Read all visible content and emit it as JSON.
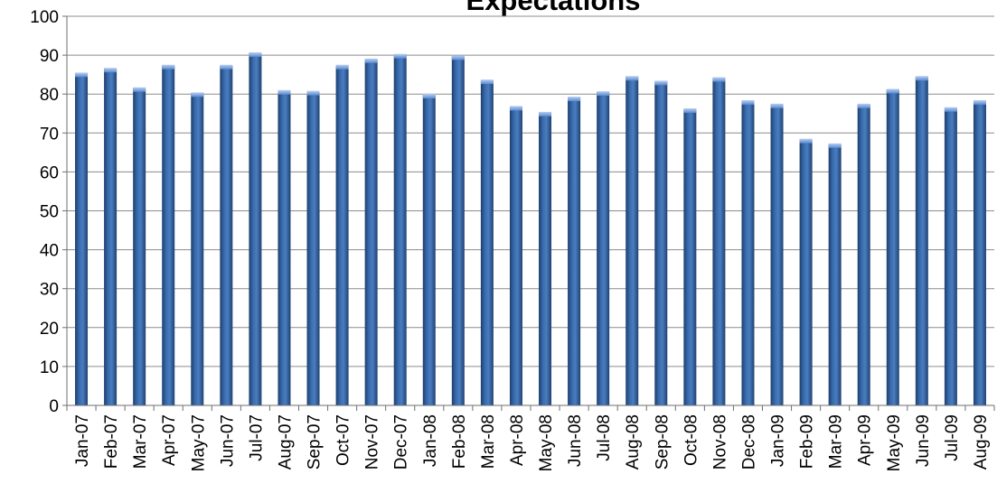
{
  "chart_data": {
    "type": "bar",
    "title": "Expectations",
    "xlabel": "",
    "ylabel": "",
    "ylim": [
      0,
      100
    ],
    "yticks": [
      "0",
      "10",
      "20",
      "30",
      "40",
      "50",
      "60",
      "70",
      "80",
      "90",
      "100"
    ],
    "grid": true,
    "legend": "none",
    "bar_color": "#2f5f9e",
    "categories": [
      "Jan-07",
      "Feb-07",
      "Mar-07",
      "Apr-07",
      "May-07",
      "Jun-07",
      "Jul-07",
      "Aug-07",
      "Sep-07",
      "Oct-07",
      "Nov-07",
      "Dec-07",
      "Jan-08",
      "Feb-08",
      "Mar-08",
      "Apr-08",
      "May-08",
      "Jun-08",
      "Jul-08",
      "Aug-08",
      "Sep-08",
      "Oct-08",
      "Nov-08",
      "Dec-08",
      "Jan-09",
      "Feb-09",
      "Mar-09",
      "Apr-09",
      "May-09",
      "Jun-09",
      "Jul-09",
      "Aug-09"
    ],
    "values": [
      85.3,
      86.5,
      81.5,
      87.3,
      80.2,
      87.3,
      90.5,
      80.8,
      80.6,
      87.3,
      88.9,
      90.1,
      79.8,
      89.7,
      83.5,
      76.7,
      75.2,
      79.1,
      80.5,
      84.4,
      83.2,
      76.1,
      84.1,
      78.2,
      77.3,
      68.3,
      67.1,
      77.3,
      81.1,
      84.4,
      76.4,
      78.2
    ]
  }
}
